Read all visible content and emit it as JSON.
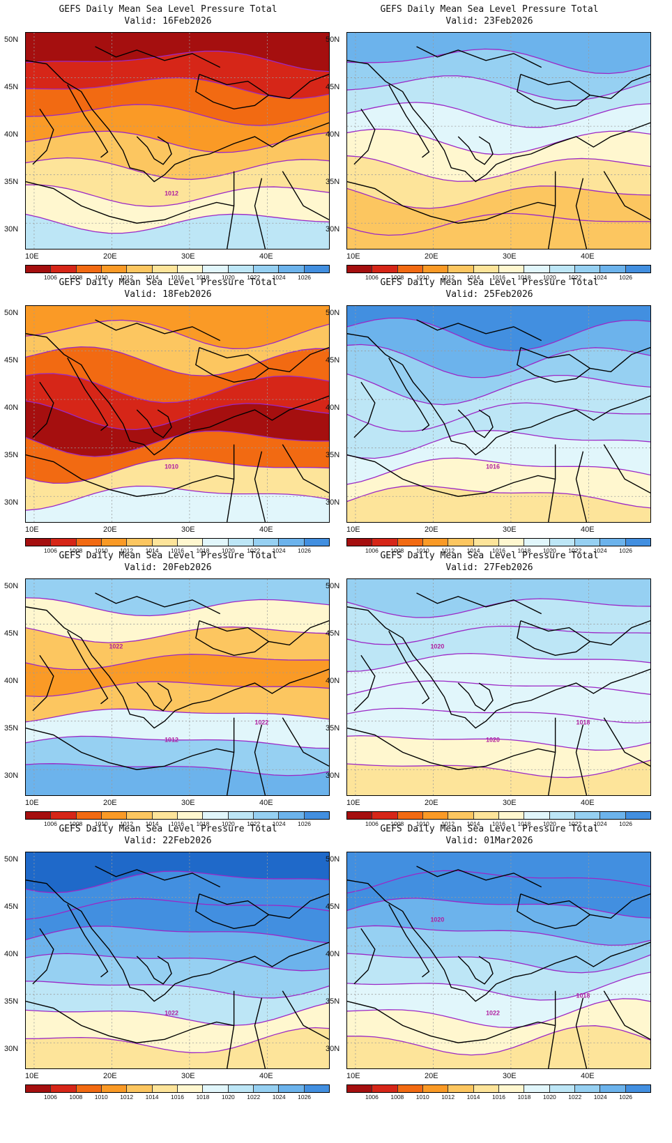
{
  "colors": {
    "levels": [
      "#a50f0f",
      "#d62618",
      "#f26a12",
      "#fa9a26",
      "#fcc660",
      "#fde49a",
      "#fff7cf",
      "#e1f6fb",
      "#bde6f6",
      "#96d0f2",
      "#6cb3ec",
      "#428fe0",
      "#1f69c9"
    ],
    "contour": "#9b27c6",
    "land_border": "#000000",
    "grid": "#9a9a9a"
  },
  "colorbar_labels": [
    "1006",
    "1008",
    "1010",
    "1012",
    "1014",
    "1016",
    "1018",
    "1020",
    "1022",
    "1024",
    "1026"
  ],
  "lat_labels": [
    "50N",
    "45N",
    "40N",
    "35N",
    "30N"
  ],
  "lon_labels": [
    "10E",
    "20E",
    "30E",
    "40E"
  ],
  "panels": [
    {
      "title": "GEFS Daily Mean Sea Level Pressure Total",
      "valid": "Valid: 16Feb2026",
      "iso_labels": [
        "1012"
      ],
      "scheme": [
        0,
        1,
        2,
        3,
        4,
        5,
        6,
        8
      ]
    },
    {
      "title": "GEFS Daily Mean Sea Level Pressure Total",
      "valid": "Valid: 23Feb2026",
      "iso_labels": [],
      "scheme": [
        10,
        9,
        8,
        7,
        6,
        5,
        4,
        4
      ]
    },
    {
      "title": "GEFS Daily Mean Sea Level Pressure Total",
      "valid": "Valid: 18Feb2026",
      "iso_labels": [
        "1010"
      ],
      "scheme": [
        3,
        4,
        2,
        1,
        0,
        2,
        5,
        7
      ]
    },
    {
      "title": "GEFS Daily Mean Sea Level Pressure Total",
      "valid": "Valid: 25Feb2026",
      "iso_labels": [
        "1016"
      ],
      "scheme": [
        11,
        10,
        9,
        8,
        8,
        7,
        6,
        5
      ]
    },
    {
      "title": "GEFS Daily Mean Sea Level Pressure Total",
      "valid": "Valid: 20Feb2026",
      "iso_labels": [
        "1012",
        "1022",
        "1022"
      ],
      "scheme": [
        9,
        6,
        4,
        3,
        4,
        7,
        9,
        10
      ]
    },
    {
      "title": "GEFS Daily Mean Sea Level Pressure Total",
      "valid": "Valid: 27Feb2026",
      "iso_labels": [
        "1020",
        "1020",
        "1018"
      ],
      "scheme": [
        9,
        8,
        8,
        7,
        7,
        7,
        6,
        5
      ]
    },
    {
      "title": "GEFS Daily Mean Sea Level Pressure Total",
      "valid": "Valid: 22Feb2026",
      "iso_labels": [
        "1022"
      ],
      "scheme": [
        12,
        11,
        11,
        10,
        9,
        8,
        6,
        5
      ]
    },
    {
      "title": "GEFS Daily Mean Sea Level Pressure Total",
      "valid": "Valid: 01Mar2026",
      "iso_labels": [
        "1022",
        "1020",
        "1018"
      ],
      "scheme": [
        11,
        11,
        10,
        9,
        8,
        7,
        6,
        5
      ]
    }
  ]
}
